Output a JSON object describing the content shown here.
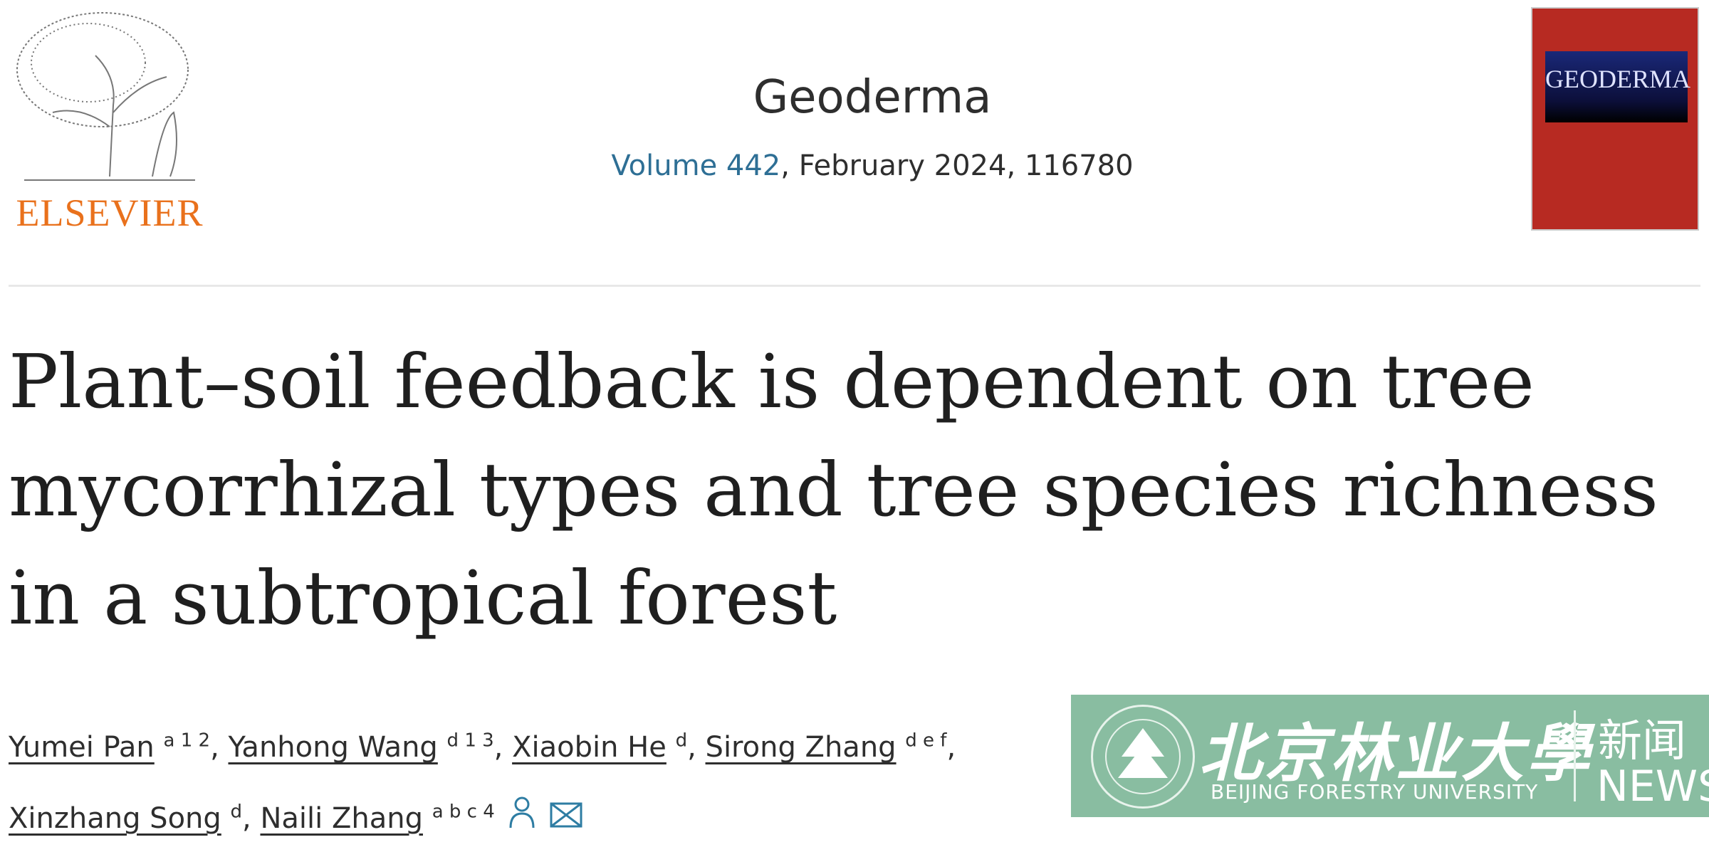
{
  "publisher": {
    "logo_text": "ELSEVIER",
    "icon": "elsevier-tree-logo",
    "color": "#e9711c"
  },
  "journal": {
    "name": "Geoderma",
    "volume_link": "Volume 442",
    "issue_info": ", February 2024, 116780",
    "cover_title": "GEODERMA"
  },
  "article": {
    "title_lines": [
      "Plant–soil feedback is dependent on tree",
      "mycorrhizal types and tree species richness",
      "in a subtropical forest"
    ]
  },
  "authors": [
    {
      "name": "Yumei Pan",
      "sup": "a 1 2",
      "sep": ", "
    },
    {
      "name": "Yanhong Wang",
      "sup": "d 1 3",
      "sep": ", "
    },
    {
      "name": "Xiaobin He",
      "sup": "d",
      "sep": ", "
    },
    {
      "name": "Sirong Zhang",
      "sup": "d e f",
      "sep": ", "
    },
    {
      "name": "Xinzhang Song",
      "sup": "d",
      "sep": ", "
    },
    {
      "name": "Naili Zhang",
      "sup": "a b c 4",
      "sep": ""
    }
  ],
  "author_icons": [
    "person-icon",
    "envelope-icon"
  ],
  "watermark": {
    "name_cn": "北京林业大學",
    "name_en": "BEIJING FORESTRY UNIVERSITY",
    "news_cn": "新闻",
    "news_en": "NEWS",
    "color": "#7fb799"
  }
}
